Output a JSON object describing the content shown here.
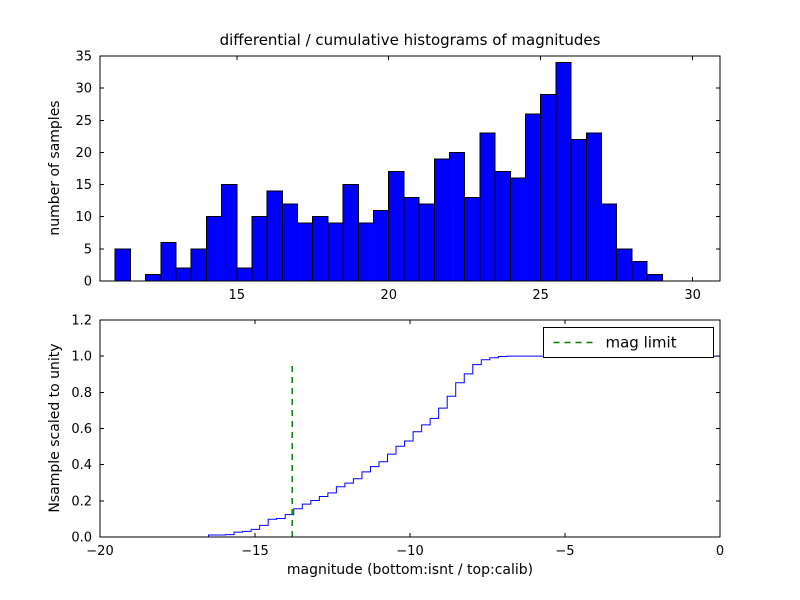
{
  "figure": {
    "title": "differential / cumulative histograms of magnitudes",
    "background": "#ffffff"
  },
  "chart_data": [
    {
      "type": "bar",
      "role": "differential-histogram",
      "title": "differential / cumulative histograms of magnitudes",
      "ylabel": "number of samples",
      "bar_color": "#0000ff",
      "bar_edge_color": "#000000",
      "bin_start": 11.0,
      "bin_width": 0.5,
      "values": [
        5,
        0,
        1,
        6,
        2,
        5,
        10,
        15,
        2,
        10,
        14,
        12,
        9,
        10,
        9,
        15,
        9,
        11,
        17,
        13,
        12,
        19,
        20,
        13,
        23,
        17,
        16,
        26,
        29,
        34,
        22,
        23,
        12,
        5,
        3,
        1
      ],
      "xlim": [
        10.5,
        30.9
      ],
      "ylim": [
        0,
        35
      ],
      "xticks": [
        15,
        20,
        25,
        30
      ],
      "yticks": [
        0,
        5,
        10,
        15,
        20,
        25,
        30,
        35
      ],
      "grid": false
    },
    {
      "type": "line",
      "role": "cumulative-histogram",
      "ylabel": "Nsample scaled to unity",
      "xlabel": "magnitude (bottom:isnt / top:calib)",
      "line_color": "#0000ff",
      "step_x_start": -16.5,
      "step_dx": 0.275,
      "values": [
        0.011,
        0.011,
        0.013,
        0.027,
        0.031,
        0.042,
        0.064,
        0.098,
        0.102,
        0.124,
        0.156,
        0.182,
        0.202,
        0.224,
        0.244,
        0.278,
        0.298,
        0.322,
        0.36,
        0.389,
        0.416,
        0.458,
        0.502,
        0.531,
        0.582,
        0.62,
        0.656,
        0.713,
        0.778,
        0.853,
        0.902,
        0.953,
        0.98,
        0.991,
        0.998,
        1.0
      ],
      "xlim": [
        -20,
        0
      ],
      "ylim": [
        0,
        1.2
      ],
      "xticks": [
        -20,
        -15,
        -10,
        -5,
        0
      ],
      "yticks": [
        0.0,
        0.2,
        0.4,
        0.6,
        0.8,
        1.0,
        1.2
      ],
      "grid": false,
      "vline": {
        "x": -13.8,
        "ymax": 0.96,
        "color": "#008000",
        "style": "dashed",
        "label": "mag limit"
      },
      "legend": {
        "entries": [
          {
            "label": "mag limit",
            "color": "#008000",
            "style": "dashed"
          }
        ],
        "position": "upper right"
      }
    }
  ]
}
